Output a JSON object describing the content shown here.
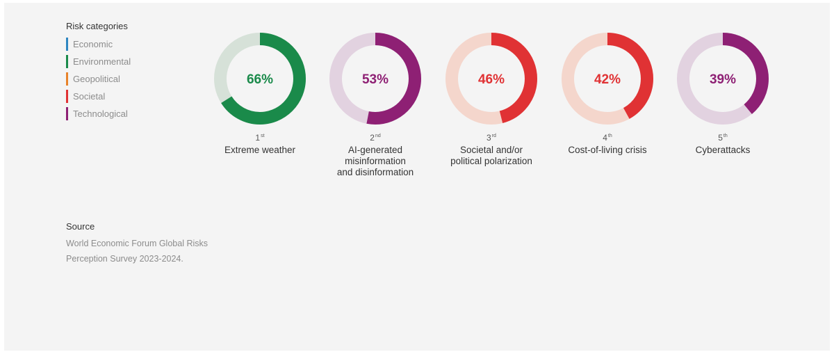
{
  "legend": {
    "title": "Risk categories",
    "items": [
      {
        "label": "Economic",
        "color": "#2e86c1"
      },
      {
        "label": "Environmental",
        "color": "#1a8a4a"
      },
      {
        "label": "Geopolitical",
        "color": "#e8832a"
      },
      {
        "label": "Societal",
        "color": "#e03234"
      },
      {
        "label": "Technological",
        "color": "#8e2074"
      }
    ]
  },
  "chart_data": {
    "type": "pie",
    "subtype": "donut",
    "unit": "%",
    "risks": [
      {
        "rank_num": "1",
        "rank_suffix": "st",
        "label": "Extreme weather",
        "value": 66,
        "value_label": "66%",
        "category": "Environmental",
        "color": "#1a8a4a",
        "track_color": "#d6e1d8"
      },
      {
        "rank_num": "2",
        "rank_suffix": "nd",
        "label": "AI-generated\nmisinformation\nand disinformation",
        "value": 53,
        "value_label": "53%",
        "category": "Technological",
        "color": "#8e2074",
        "track_color": "#e2d2e0"
      },
      {
        "rank_num": "3",
        "rank_suffix": "rd",
        "label": "Societal and/or\npolitical polarization",
        "value": 46,
        "value_label": "46%",
        "category": "Societal",
        "color": "#e03234",
        "track_color": "#f4d6cc"
      },
      {
        "rank_num": "4",
        "rank_suffix": "th",
        "label": "Cost-of-living crisis",
        "value": 42,
        "value_label": "42%",
        "category": "Societal",
        "color": "#e03234",
        "track_color": "#f4d6cc"
      },
      {
        "rank_num": "5",
        "rank_suffix": "th",
        "label": "Cyberattacks",
        "value": 39,
        "value_label": "39%",
        "category": "Technological",
        "color": "#8e2074",
        "track_color": "#e2d2e0"
      }
    ]
  },
  "source": {
    "title": "Source",
    "text": "World Economic Forum Global Risks Perception Survey 2023-2024."
  }
}
